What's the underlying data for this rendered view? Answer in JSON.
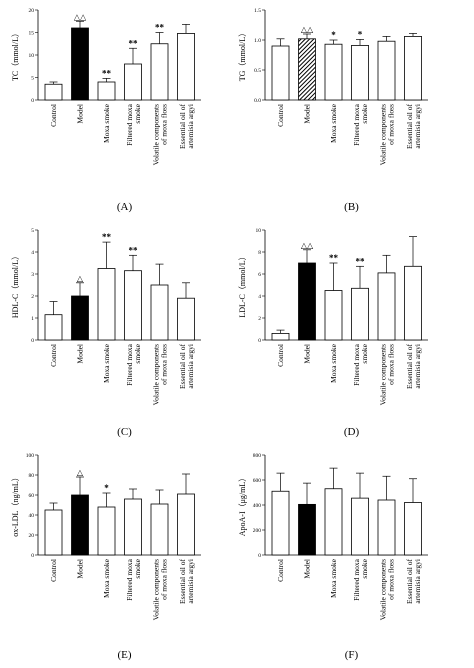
{
  "figure": {
    "categories": [
      [
        "Control"
      ],
      [
        "Model"
      ],
      [
        "Moxa smoke"
      ],
      [
        "Filtered moxa",
        "smoke"
      ],
      [
        "Volatile components",
        "of moxa floss"
      ],
      [
        "Essential oil of",
        "artemisia argyi"
      ]
    ]
  },
  "chart_data": [
    {
      "type": "bar",
      "panel_label": "(A)",
      "ylabel": "TC（mmol/L）",
      "ylim": [
        0,
        20
      ],
      "yticks": [
        "0",
        "5",
        "10",
        "15",
        "20"
      ],
      "values": [
        3.5,
        16.0,
        4.0,
        8.0,
        12.5,
        14.8
      ],
      "errors": [
        0.5,
        1.5,
        0.8,
        3.5,
        2.5,
        2.0
      ],
      "annotations": [
        "",
        "△△",
        "**",
        "**",
        "**",
        ""
      ]
    },
    {
      "type": "bar",
      "panel_label": "(B)",
      "ylabel": "TG（mmol/L）",
      "ylim": [
        0,
        1.5
      ],
      "yticks": [
        "0.0",
        "0.5",
        "1.0",
        "1.5"
      ],
      "values": [
        0.9,
        1.02,
        0.93,
        0.91,
        0.98,
        1.06
      ],
      "errors": [
        0.12,
        0.08,
        0.07,
        0.1,
        0.08,
        0.05
      ],
      "annotations": [
        "",
        "△△",
        "*",
        "*",
        "",
        ""
      ]
    },
    {
      "type": "bar",
      "panel_label": "(C)",
      "ylabel": "HDL-C（mmol/L）",
      "ylim": [
        0,
        5
      ],
      "yticks": [
        "0",
        "1",
        "2",
        "3",
        "4",
        "5"
      ],
      "values": [
        1.15,
        2.0,
        3.25,
        3.15,
        2.5,
        1.9
      ],
      "errors": [
        0.6,
        0.6,
        1.2,
        0.7,
        0.95,
        0.7
      ],
      "annotations": [
        "",
        "△",
        "**",
        "**",
        "",
        ""
      ]
    },
    {
      "type": "bar",
      "panel_label": "(D)",
      "ylabel": "LDL-C（mmol/L）",
      "ylim": [
        0,
        10
      ],
      "yticks": [
        "0",
        "2",
        "4",
        "6",
        "8",
        "10"
      ],
      "values": [
        0.6,
        7.0,
        4.5,
        4.7,
        6.1,
        6.7
      ],
      "errors": [
        0.3,
        1.2,
        2.5,
        2.0,
        1.6,
        2.7
      ],
      "annotations": [
        "",
        "△△",
        "**",
        "**",
        "",
        ""
      ]
    },
    {
      "type": "bar",
      "panel_label": "(E)",
      "ylabel": "ox-LDL（ng/mL）",
      "ylim": [
        0,
        100
      ],
      "yticks": [
        "0",
        "20",
        "40",
        "60",
        "80",
        "100"
      ],
      "values": [
        45,
        60,
        48,
        56,
        51,
        61
      ],
      "errors": [
        7,
        18,
        14,
        10,
        14,
        20
      ],
      "annotations": [
        "",
        "△",
        "*",
        "",
        "",
        ""
      ]
    },
    {
      "type": "bar",
      "panel_label": "(F)",
      "ylabel": "ApoA-I（μg/mL）",
      "ylim": [
        0,
        800
      ],
      "yticks": [
        "0",
        "200",
        "400",
        "600",
        "800"
      ],
      "values": [
        510,
        405,
        530,
        455,
        440,
        420
      ],
      "errors": [
        145,
        170,
        165,
        200,
        190,
        190
      ],
      "annotations": [
        "",
        "",
        "",
        "",
        "",
        ""
      ]
    }
  ]
}
